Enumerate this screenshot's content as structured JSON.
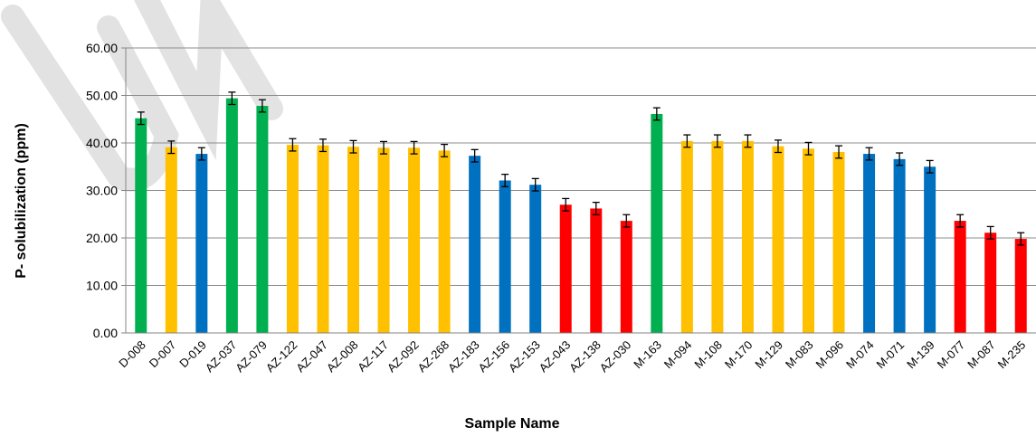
{
  "chart_data": {
    "type": "bar",
    "xlabel": "Sample Name",
    "ylabel": "P- solubilization (ppm)",
    "ylim": [
      0,
      60
    ],
    "y_ticks": [
      "0.00",
      "10.00",
      "20.00",
      "30.00",
      "40.00",
      "50.00",
      "60.00"
    ],
    "grid": true,
    "legend": "none",
    "colors": {
      "green": "#00b050",
      "yellow": "#ffc000",
      "blue": "#0070c0",
      "red": "#ff0000"
    },
    "categories": [
      "D-008",
      "D-007",
      "D-019",
      "AZ-037",
      "AZ-079",
      "AZ-122",
      "AZ-047",
      "AZ-008",
      "AZ-117",
      "AZ-092",
      "AZ-268",
      "AZ-183",
      "AZ-156",
      "AZ-153",
      "AZ-043",
      "AZ-138",
      "AZ-030",
      "M-163",
      "M-094",
      "M-108",
      "M-170",
      "M-129",
      "M-083",
      "M-096",
      "M-074",
      "M-071",
      "M-139",
      "M-077",
      "M-087",
      "M-235"
    ],
    "values": [
      45.2,
      39.1,
      37.7,
      49.4,
      47.8,
      39.6,
      39.5,
      39.2,
      39.0,
      39.0,
      38.4,
      37.3,
      32.1,
      31.2,
      27.0,
      26.2,
      23.6,
      46.1,
      40.4,
      40.4,
      40.4,
      39.3,
      38.8,
      38.1,
      37.7,
      36.6,
      35.0,
      23.6,
      21.1,
      19.8
    ],
    "errors": [
      1.3,
      1.3,
      1.3,
      1.3,
      1.3,
      1.3,
      1.3,
      1.3,
      1.3,
      1.3,
      1.3,
      1.3,
      1.3,
      1.3,
      1.3,
      1.3,
      1.3,
      1.3,
      1.3,
      1.3,
      1.3,
      1.3,
      1.3,
      1.3,
      1.3,
      1.3,
      1.3,
      1.3,
      1.3,
      1.3
    ],
    "bar_colors": [
      "green",
      "yellow",
      "blue",
      "green",
      "green",
      "yellow",
      "yellow",
      "yellow",
      "yellow",
      "yellow",
      "yellow",
      "blue",
      "blue",
      "blue",
      "red",
      "red",
      "red",
      "green",
      "yellow",
      "yellow",
      "yellow",
      "yellow",
      "yellow",
      "yellow",
      "blue",
      "blue",
      "blue",
      "red",
      "red",
      "red"
    ]
  }
}
